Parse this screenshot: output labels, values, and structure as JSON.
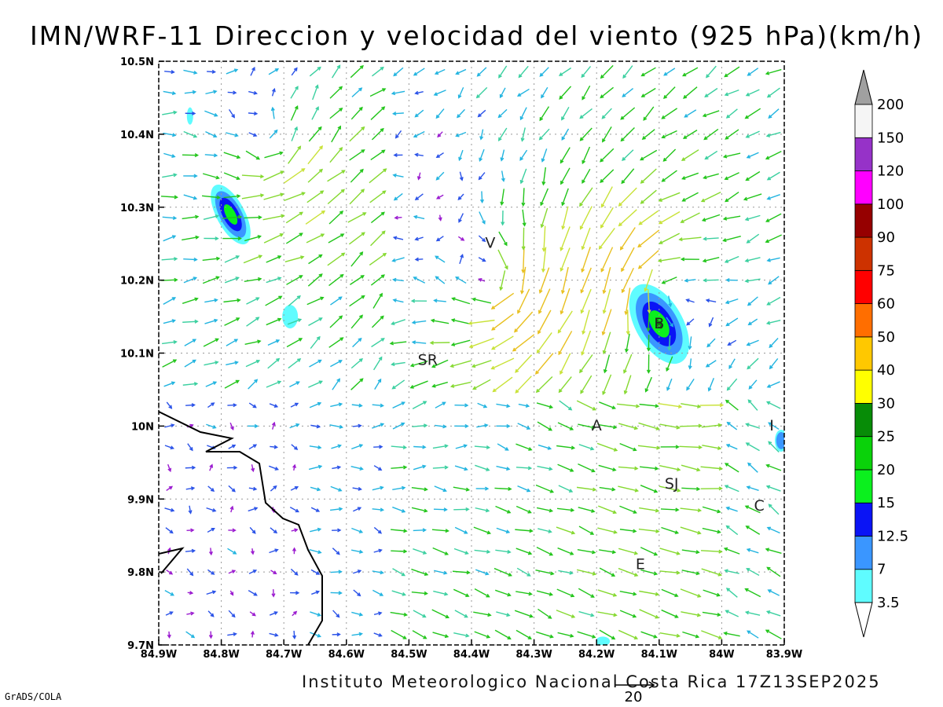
{
  "title": "IMN/WRF-11 Direccion y velocidad del viento (925 hPa)(km/h)",
  "credit": "Instituto Meteorologico Nacional Costa Rica 17Z13SEP2025",
  "software": "GrADS/COLA",
  "map": {
    "lon_range": [
      -84.9,
      -83.9
    ],
    "lat_range": [
      9.7,
      10.5
    ],
    "x_ticks": [
      {
        "value": -84.9,
        "label": "84.9W"
      },
      {
        "value": -84.8,
        "label": "84.8W"
      },
      {
        "value": -84.7,
        "label": "84.7W"
      },
      {
        "value": -84.6,
        "label": "84.6W"
      },
      {
        "value": -84.5,
        "label": "84.5W"
      },
      {
        "value": -84.4,
        "label": "84.4W"
      },
      {
        "value": -84.3,
        "label": "84.3W"
      },
      {
        "value": -84.2,
        "label": "84.2W"
      },
      {
        "value": -84.1,
        "label": "84.1W"
      },
      {
        "value": -84.0,
        "label": "84W"
      },
      {
        "value": -83.9,
        "label": "83.9W"
      }
    ],
    "y_ticks": [
      {
        "value": 9.7,
        "label": "9.7N"
      },
      {
        "value": 9.8,
        "label": "9.8N"
      },
      {
        "value": 9.9,
        "label": "9.9N"
      },
      {
        "value": 10.0,
        "label": "10N"
      },
      {
        "value": 10.1,
        "label": "10.1N"
      },
      {
        "value": 10.2,
        "label": "10.2N"
      },
      {
        "value": 10.3,
        "label": "10.3N"
      },
      {
        "value": 10.4,
        "label": "10.4N"
      },
      {
        "value": 10.5,
        "label": "10.5N"
      }
    ],
    "grid": "dotted",
    "cities": [
      {
        "label": "V",
        "lon": -84.37,
        "lat": 10.25
      },
      {
        "label": "SR",
        "lon": -84.47,
        "lat": 10.09
      },
      {
        "label": "B",
        "lon": -84.1,
        "lat": 10.14
      },
      {
        "label": "A",
        "lon": -84.2,
        "lat": 10.0
      },
      {
        "label": "I",
        "lon": -83.92,
        "lat": 10.0
      },
      {
        "label": "SJ",
        "lon": -84.08,
        "lat": 9.92
      },
      {
        "label": "C",
        "lon": -83.94,
        "lat": 9.89
      },
      {
        "label": "E",
        "lon": -84.13,
        "lat": 9.81
      }
    ],
    "reference_vector": {
      "label": "20",
      "speed_kmh": 20
    }
  },
  "colorbar": {
    "levels": [
      "3.5",
      "7",
      "12.5",
      "15",
      "20",
      "25",
      "30",
      "40",
      "50",
      "60",
      "75",
      "90",
      "100",
      "120",
      "150",
      "200"
    ],
    "colors": [
      "#5ffcff",
      "#3a96ff",
      "#0a14f5",
      "#0bf01e",
      "#0ad20a",
      "#078c07",
      "#ffff00",
      "#ffc800",
      "#ff6e00",
      "#ff0000",
      "#cd3200",
      "#960000",
      "#ff00ff",
      "#9632c8",
      "#f5f5f5"
    ],
    "over_color": "#a0a0a0",
    "under_color": "#ffffff"
  },
  "vector_colors": {
    "lt3.5": "#9b1bd0",
    "3.5-7": "#2a52e8",
    "7-12.5": "#22b4e0",
    "12.5-15": "#3bd0a0",
    "15-20": "#22c51a",
    "20-25": "#86d930",
    "25-30": "#c9e238",
    "30-40": "#e8c020",
    "40-50": "#f08a2a",
    "gt50": "#ee2020"
  }
}
